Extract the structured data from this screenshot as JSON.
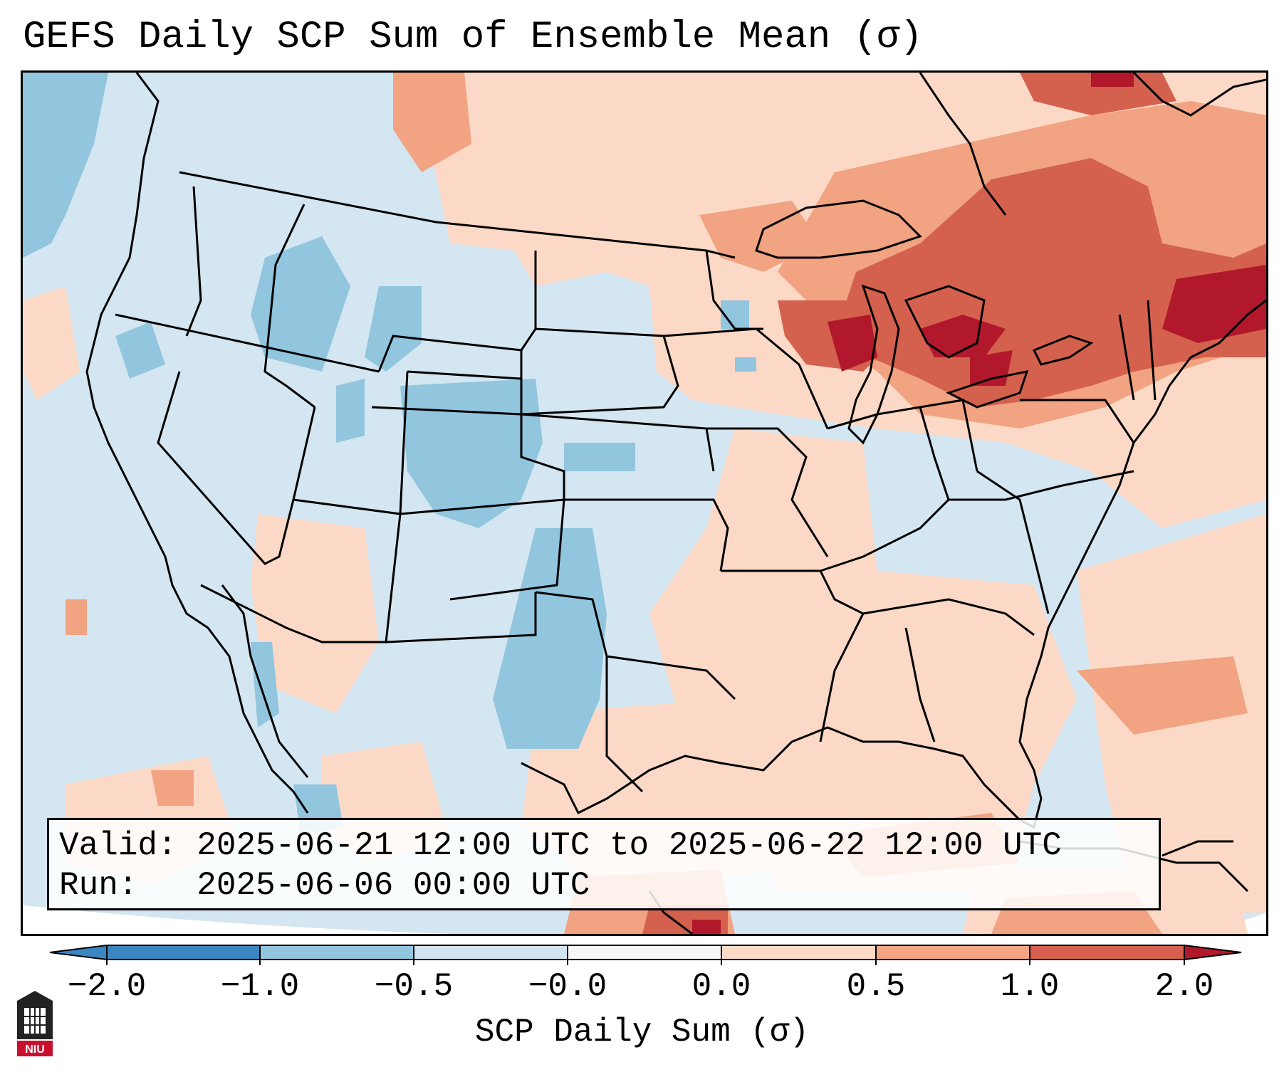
{
  "title": "GEFS Daily SCP Sum of Ensemble Mean (σ)",
  "info": {
    "valid_label": "Valid:",
    "valid_value": "2025-06-21 12:00 UTC to 2025-06-22 12:00 UTC",
    "run_label": "Run:",
    "run_value": "2025-06-06 00:00 UTC"
  },
  "colorbar": {
    "label": "SCP Daily Sum (σ)",
    "ticks": [
      "−2.0",
      "−1.0",
      "−0.5",
      "−0.0",
      "0.0",
      "0.5",
      "1.0",
      "2.0"
    ],
    "colors": [
      "#3a86c0",
      "#92c5de",
      "#d1e5f0",
      "#f7f7f7",
      "#fddbc7",
      "#f4a582",
      "#d6604d",
      "#b2182b"
    ]
  },
  "logo": {
    "text": "NIU"
  }
}
